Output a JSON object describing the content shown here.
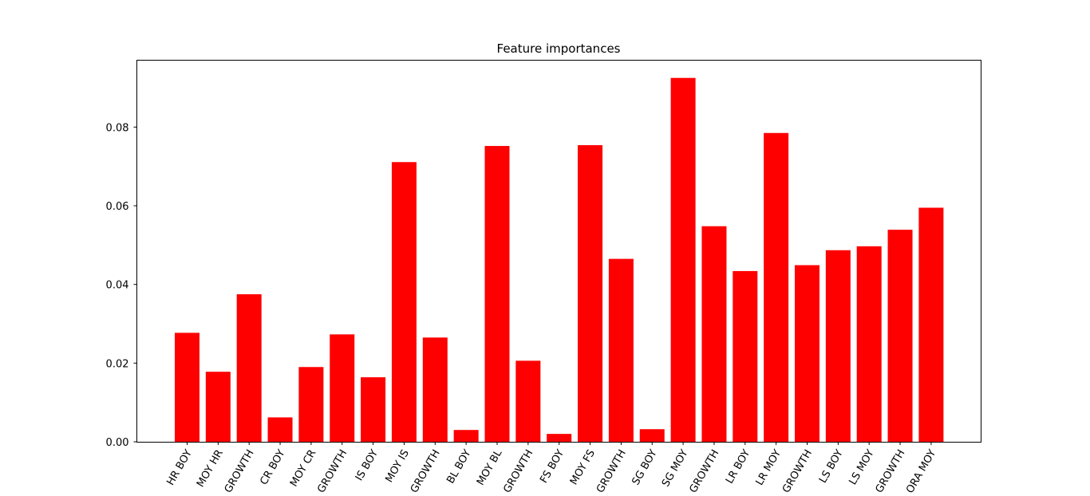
{
  "chart_data": {
    "type": "bar",
    "title": "Feature importances",
    "xlabel": "",
    "ylabel": "",
    "ylim": [
      0,
      0.097
    ],
    "yticks": [
      0.0,
      0.02,
      0.04,
      0.06,
      0.08
    ],
    "ytick_labels": [
      "0.00",
      "0.02",
      "0.04",
      "0.06",
      "0.08"
    ],
    "bar_color": "#ff0000",
    "categories": [
      "HR BOY",
      "MOY HR",
      "GROWTH",
      "CR BOY",
      "MOY CR",
      "GROWTH",
      "IS BOY",
      "MOY IS",
      "GROWTH",
      "BL BOY",
      "MOY BL",
      "GROWTH",
      "FS BOY",
      "MOY FS",
      "GROWTH",
      "SG BOY",
      "SG MOY",
      "GROWTH",
      "LR BOY",
      "LR MOY",
      "GROWTH",
      "LS BOY",
      "LS MOY",
      "GROWTH",
      "ORA MOY"
    ],
    "values": [
      0.0277,
      0.0178,
      0.0375,
      0.0062,
      0.019,
      0.0273,
      0.0164,
      0.0711,
      0.0265,
      0.003,
      0.0752,
      0.0206,
      0.002,
      0.0754,
      0.0465,
      0.0032,
      0.0925,
      0.0548,
      0.0434,
      0.0785,
      0.0449,
      0.0487,
      0.0497,
      0.0539,
      0.0595
    ]
  }
}
